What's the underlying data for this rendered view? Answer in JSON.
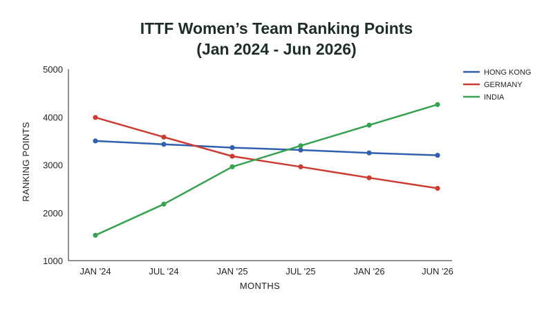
{
  "chart_data": {
    "type": "line",
    "title": "ITTF Women’s Team Ranking Points",
    "subtitle": "(Jan 2024 - Jun 2026)",
    "xlabel": "MONTHS",
    "ylabel": "RANKING POINTS",
    "categories": [
      "JAN '24",
      "JUL '24",
      "JAN '25",
      "JUL '25",
      "JAN '26",
      "JUN '26"
    ],
    "ylim": [
      1000,
      5000
    ],
    "yticks": [
      1000,
      2000,
      3000,
      4000,
      5000
    ],
    "grid": false,
    "legend_position": "top-right",
    "series": [
      {
        "name": "HONG KONG",
        "color": "#2f5fae",
        "values": [
          3500,
          3430,
          3360,
          3310,
          3250,
          3200
        ]
      },
      {
        "name": "GERMANY",
        "color": "#cc3b33",
        "values": [
          3990,
          3580,
          3180,
          2960,
          2730,
          2510
        ]
      },
      {
        "name": "INDIA",
        "color": "#36a150",
        "values": [
          1530,
          2180,
          2960,
          3400,
          3830,
          4260
        ]
      }
    ]
  }
}
